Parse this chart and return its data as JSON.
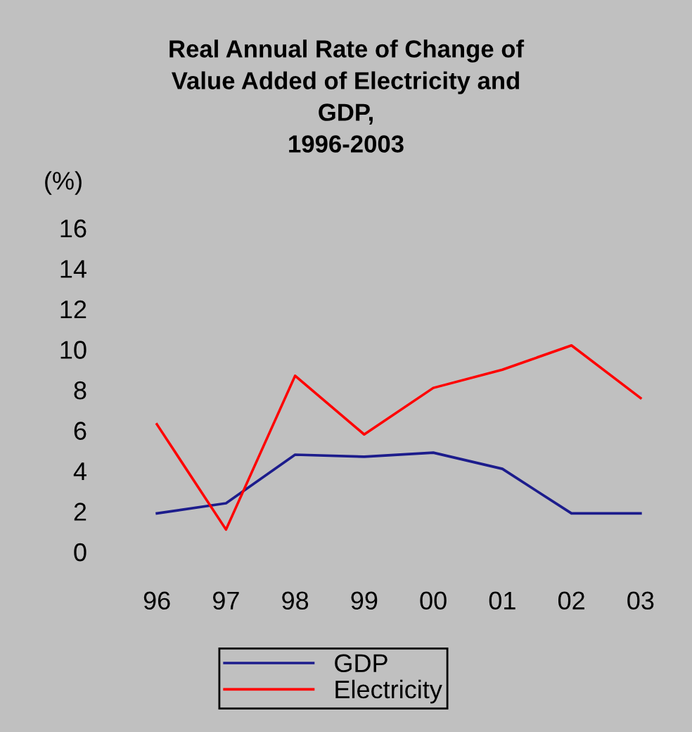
{
  "chart_data": {
    "type": "line",
    "title": "Real Annual Rate of Change of\nValue Added of Electricity and\nGDP,\n1996-2003",
    "ylabel": "(%)",
    "categories": [
      "96",
      "97",
      "98",
      "99",
      "00",
      "01",
      "02",
      "03"
    ],
    "series": [
      {
        "name": "GDP",
        "color": "#1c1c8c",
        "values": [
          1.9,
          2.4,
          4.8,
          4.7,
          4.9,
          4.1,
          1.9,
          1.9
        ]
      },
      {
        "name": "Electricity",
        "color": "#ff0000",
        "values": [
          6.3,
          1.1,
          8.7,
          5.8,
          8.1,
          9.0,
          10.2,
          7.6
        ]
      }
    ],
    "ylim": [
      0,
      16
    ],
    "yticks": [
      0,
      2,
      4,
      6,
      8,
      10,
      12,
      14,
      16
    ],
    "grid": false,
    "legend": "bottom",
    "marker": "none",
    "line_style": "solid"
  }
}
